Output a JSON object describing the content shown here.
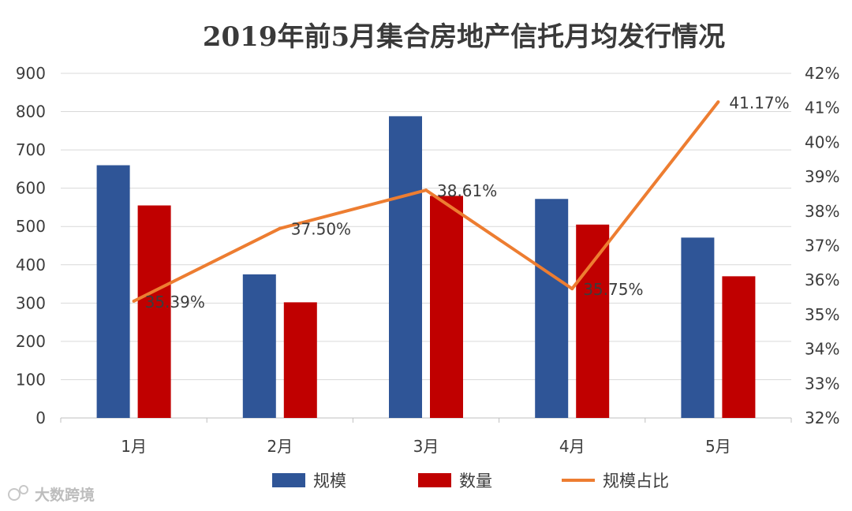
{
  "chart_data": {
    "type": "bar",
    "title": "2019年前5月集合房地产信托月均发行情况",
    "categories": [
      "1月",
      "2月",
      "3月",
      "4月",
      "5月"
    ],
    "series": [
      {
        "name": "规模",
        "type": "bar",
        "axis": "left",
        "color": "#2f5597",
        "values": [
          660,
          375,
          788,
          572,
          471
        ]
      },
      {
        "name": "数量",
        "type": "bar",
        "axis": "left",
        "color": "#c00000",
        "values": [
          555,
          302,
          580,
          505,
          370
        ]
      },
      {
        "name": "规模占比",
        "type": "line",
        "axis": "right",
        "color": "#ed7d31",
        "values": [
          35.39,
          37.5,
          38.61,
          35.75,
          41.17
        ],
        "labels": [
          "35.39%",
          "37.50%",
          "38.61%",
          "35.75%",
          "41.17%"
        ]
      }
    ],
    "ylim_left": [
      0,
      900
    ],
    "yticks_left": [
      "0",
      "100",
      "200",
      "300",
      "400",
      "500",
      "600",
      "700",
      "800",
      "900"
    ],
    "ylim_right": [
      32,
      42
    ],
    "yticks_right": [
      "32%",
      "33%",
      "34%",
      "35%",
      "36%",
      "37%",
      "38%",
      "39%",
      "40%",
      "41%",
      "42%"
    ],
    "grid": true,
    "legend": "bottom"
  },
  "watermark": "大数跨境"
}
